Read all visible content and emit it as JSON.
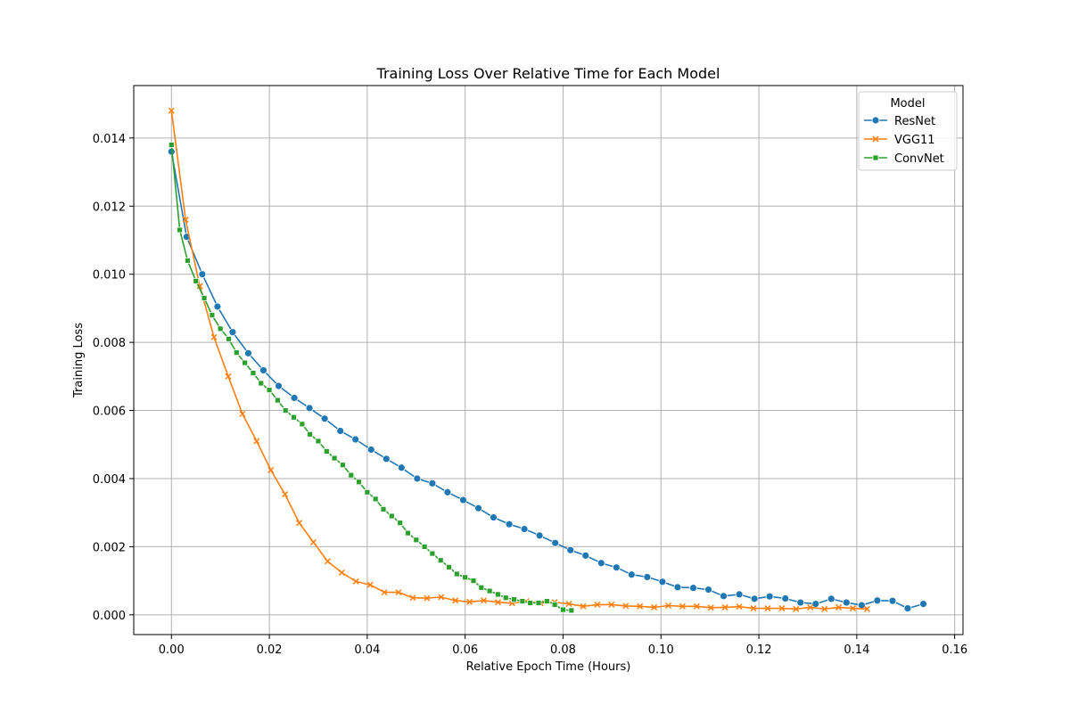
{
  "chart_data": {
    "type": "line",
    "title": "Training Loss Over Relative Time for Each Model",
    "xlabel": "Relative Epoch Time (Hours)",
    "ylabel": "Training Loss",
    "xlim": [
      -0.0077,
      0.1617
    ],
    "ylim": [
      -0.00058,
      0.01554
    ],
    "xticks": [
      0.0,
      0.02,
      0.04,
      0.06,
      0.08,
      0.1,
      0.12,
      0.14,
      0.16
    ],
    "xtick_labels": [
      "0.00",
      "0.02",
      "0.04",
      "0.06",
      "0.08",
      "0.10",
      "0.12",
      "0.14",
      "0.16"
    ],
    "yticks": [
      0.0,
      0.002,
      0.004,
      0.006,
      0.008,
      0.01,
      0.012,
      0.014
    ],
    "ytick_labels": [
      "0.000",
      "0.002",
      "0.004",
      "0.006",
      "0.008",
      "0.010",
      "0.012",
      "0.014"
    ],
    "grid": true,
    "legend": {
      "title": "Model",
      "placement": "top-right"
    },
    "series": [
      {
        "name": "ResNet",
        "color": "#1f77b4",
        "marker": "circle",
        "x": [
          0.0,
          0.0031,
          0.0063,
          0.0094,
          0.0125,
          0.0157,
          0.0188,
          0.0219,
          0.0251,
          0.0282,
          0.0313,
          0.0345,
          0.0376,
          0.0408,
          0.0439,
          0.047,
          0.0502,
          0.0533,
          0.0564,
          0.0596,
          0.0627,
          0.0658,
          0.069,
          0.0721,
          0.0752,
          0.0784,
          0.0815,
          0.0846,
          0.0878,
          0.0909,
          0.094,
          0.0972,
          0.1003,
          0.1034,
          0.1066,
          0.1097,
          0.1128,
          0.116,
          0.1191,
          0.1222,
          0.1254,
          0.1285,
          0.1316,
          0.1348,
          0.1379,
          0.141,
          0.1442,
          0.1473,
          0.1504,
          0.1536
        ],
        "y": [
          0.0136,
          0.0111,
          0.01,
          0.00905,
          0.0083,
          0.00768,
          0.00718,
          0.00672,
          0.00637,
          0.00607,
          0.00576,
          0.0054,
          0.00515,
          0.00485,
          0.00458,
          0.00432,
          0.004,
          0.00386,
          0.0036,
          0.00337,
          0.00313,
          0.00286,
          0.00266,
          0.00252,
          0.00233,
          0.00211,
          0.0019,
          0.00174,
          0.00152,
          0.00139,
          0.00118,
          0.00111,
          0.00097,
          0.00081,
          0.00079,
          0.00074,
          0.00055,
          0.0006,
          0.00047,
          0.00054,
          0.00048,
          0.00036,
          0.00032,
          0.00047,
          0.00036,
          0.00028,
          0.00042,
          0.00041,
          0.00019,
          0.00032
        ]
      },
      {
        "name": "VGG11",
        "color": "#ff7f0e",
        "marker": "x",
        "x": [
          0.0,
          0.0029,
          0.0058,
          0.0087,
          0.0116,
          0.0145,
          0.0174,
          0.0203,
          0.0232,
          0.0261,
          0.029,
          0.0319,
          0.0348,
          0.0377,
          0.0406,
          0.0435,
          0.0464,
          0.0493,
          0.0522,
          0.0551,
          0.058,
          0.0609,
          0.0638,
          0.0667,
          0.0696,
          0.0725,
          0.0754,
          0.0783,
          0.0812,
          0.0841,
          0.087,
          0.0899,
          0.0928,
          0.0957,
          0.0986,
          0.1015,
          0.1044,
          0.1073,
          0.1102,
          0.1131,
          0.116,
          0.1189,
          0.1218,
          0.1247,
          0.1276,
          0.1305,
          0.1334,
          0.1363,
          0.1392,
          0.1421
        ],
        "y": [
          0.0148,
          0.0116,
          0.00965,
          0.00815,
          0.007,
          0.0059,
          0.0051,
          0.00425,
          0.00354,
          0.0027,
          0.00213,
          0.00157,
          0.00124,
          0.00098,
          0.00088,
          0.00066,
          0.00066,
          0.0005,
          0.00049,
          0.00052,
          0.00042,
          0.00038,
          0.00042,
          0.00037,
          0.00034,
          0.0004,
          0.00034,
          0.00037,
          0.00032,
          0.00025,
          0.0003,
          0.0003,
          0.00026,
          0.00025,
          0.00022,
          0.00027,
          0.00025,
          0.00025,
          0.00021,
          0.00022,
          0.00024,
          0.00019,
          0.00019,
          0.00019,
          0.00017,
          0.00022,
          0.00017,
          0.00022,
          0.00019,
          0.00017
        ]
      },
      {
        "name": "ConvNet",
        "color": "#2ca02c",
        "marker": "square",
        "x": [
          0.0,
          0.0017,
          0.0033,
          0.005,
          0.0067,
          0.0083,
          0.01,
          0.0117,
          0.0133,
          0.015,
          0.0167,
          0.0183,
          0.02,
          0.0217,
          0.0233,
          0.025,
          0.0267,
          0.0283,
          0.03,
          0.0317,
          0.0333,
          0.035,
          0.0367,
          0.0383,
          0.04,
          0.0417,
          0.0433,
          0.045,
          0.0467,
          0.0483,
          0.05,
          0.0517,
          0.0533,
          0.055,
          0.0567,
          0.0583,
          0.06,
          0.0617,
          0.0633,
          0.065,
          0.0667,
          0.0683,
          0.07,
          0.0717,
          0.0733,
          0.075,
          0.0767,
          0.0783,
          0.08,
          0.0817
        ],
        "y": [
          0.0138,
          0.0113,
          0.0104,
          0.0098,
          0.0093,
          0.0088,
          0.0084,
          0.0081,
          0.0077,
          0.0074,
          0.0071,
          0.0068,
          0.0066,
          0.0063,
          0.006,
          0.0058,
          0.0056,
          0.0053,
          0.0051,
          0.0048,
          0.0046,
          0.0044,
          0.0041,
          0.0039,
          0.0036,
          0.0034,
          0.0031,
          0.0029,
          0.0027,
          0.0024,
          0.0022,
          0.002,
          0.0018,
          0.0016,
          0.0014,
          0.0012,
          0.0011,
          0.001,
          0.0008,
          0.0007,
          0.0006,
          0.0005,
          0.00045,
          0.0004,
          0.00035,
          0.00035,
          0.0004,
          0.0003,
          0.00015,
          0.00013
        ]
      }
    ]
  }
}
